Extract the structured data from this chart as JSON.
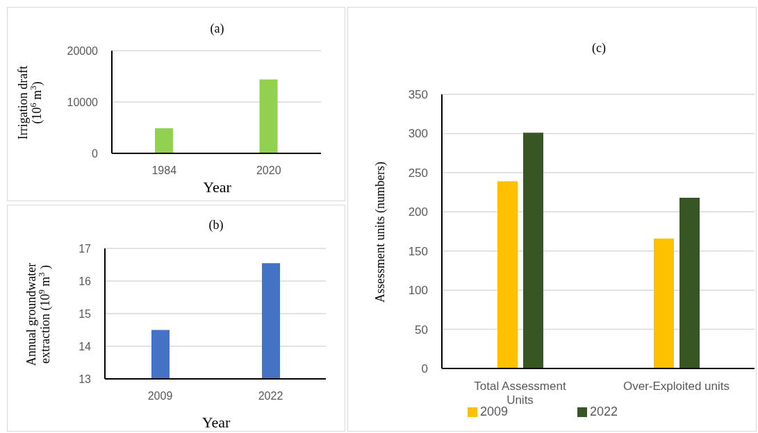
{
  "chart_data": [
    {
      "type": "bar",
      "title": "(a)",
      "xlabel": "Year",
      "ylabel": "Irrigation draft (10$^{6}$ m$^{3}$)",
      "categories": [
        "1984",
        "2020"
      ],
      "values": [
        4900,
        14400
      ],
      "color": "#92d050",
      "ylim": [
        0,
        20000
      ],
      "yticks": [
        0,
        10000,
        20000
      ],
      "grid": "y"
    },
    {
      "type": "bar",
      "title": "(b)",
      "xlabel": "Year",
      "ylabel": "Annual groundwater extraction (10$^{9}$ m$^{3}$ )",
      "categories": [
        "2009",
        "2022"
      ],
      "values": [
        14.5,
        16.55
      ],
      "color": "#4472c4",
      "ylim": [
        13,
        17
      ],
      "yticks": [
        13,
        14,
        15,
        16,
        17
      ],
      "grid": "y"
    },
    {
      "type": "bar",
      "title": "(c)",
      "ylabel": "Assessment units (numbers)",
      "categories": [
        "Total Assessment Units",
        "Over-Exploited units"
      ],
      "series": [
        {
          "name": "2009",
          "color": "#ffc000",
          "values": [
            239,
            166
          ]
        },
        {
          "name": "2022",
          "color": "#375623",
          "values": [
            301,
            218
          ]
        }
      ],
      "ylim": [
        0,
        350
      ],
      "yticks": [
        0,
        50,
        100,
        150,
        200,
        250,
        300,
        350
      ],
      "grid": "y",
      "legend": "bottom"
    }
  ]
}
